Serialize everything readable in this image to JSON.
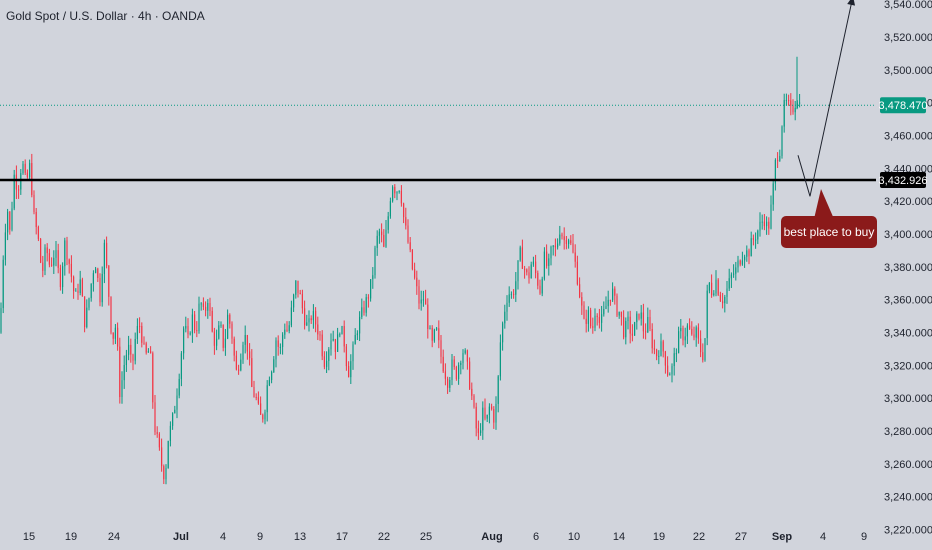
{
  "chart_data": {
    "type": "candlestick",
    "title": "Gold Spot / U.S. Dollar · 4h · OANDA",
    "ylim": [
      3210,
      3545
    ],
    "y_ticks": [
      3220,
      3240,
      3260,
      3280,
      3300,
      3320,
      3340,
      3360,
      3380,
      3400,
      3420,
      3440,
      3460,
      3480,
      3500,
      3520,
      3540
    ],
    "y_tick_labels": [
      "3,220.000",
      "3,240.000",
      "3,260.000",
      "3,280.000",
      "3,300.000",
      "3,320.000",
      "3,340.000",
      "3,360.000",
      "3,380.000",
      "3,400.000",
      "3,420.000",
      "3,440.000",
      "3,460.000",
      "3,480.000",
      "3,500.000",
      "3,520.000",
      "3,540.000"
    ],
    "x_ticks": [
      "15",
      "19",
      "24",
      "Jul",
      "4",
      "9",
      "13",
      "17",
      "22",
      "25",
      "Aug",
      "6",
      "10",
      "14",
      "19",
      "22",
      "27",
      "Sep",
      "4",
      "9"
    ],
    "path": [
      [
        0,
        3340
      ],
      [
        3,
        3385
      ],
      [
        7,
        3418
      ],
      [
        10,
        3400
      ],
      [
        14,
        3436
      ],
      [
        18,
        3428
      ],
      [
        22,
        3445
      ],
      [
        26,
        3430
      ],
      [
        30,
        3442
      ],
      [
        34,
        3410
      ],
      [
        38,
        3398
      ],
      [
        42,
        3375
      ],
      [
        46,
        3392
      ],
      [
        50,
        3380
      ],
      [
        55,
        3390
      ],
      [
        60,
        3370
      ],
      [
        65,
        3395
      ],
      [
        70,
        3380
      ],
      [
        75,
        3360
      ],
      [
        80,
        3372
      ],
      [
        85,
        3345
      ],
      [
        90,
        3365
      ],
      [
        95,
        3385
      ],
      [
        100,
        3362
      ],
      [
        104,
        3395
      ],
      [
        108,
        3370
      ],
      [
        112,
        3335
      ],
      [
        116,
        3345
      ],
      [
        120,
        3302
      ],
      [
        124,
        3320
      ],
      [
        128,
        3332
      ],
      [
        132,
        3318
      ],
      [
        136,
        3340
      ],
      [
        140,
        3345
      ],
      [
        145,
        3325
      ],
      [
        150,
        3330
      ],
      [
        154,
        3285
      ],
      [
        158,
        3272
      ],
      [
        162,
        3258
      ],
      [
        165,
        3252
      ],
      [
        168,
        3275
      ],
      [
        172,
        3285
      ],
      [
        176,
        3300
      ],
      [
        180,
        3320
      ],
      [
        184,
        3345
      ],
      [
        188,
        3335
      ],
      [
        192,
        3350
      ],
      [
        196,
        3340
      ],
      [
        200,
        3360
      ],
      [
        204,
        3350
      ],
      [
        208,
        3362
      ],
      [
        212,
        3340
      ],
      [
        216,
        3332
      ],
      [
        220,
        3345
      ],
      [
        224,
        3330
      ],
      [
        228,
        3352
      ],
      [
        232,
        3338
      ],
      [
        236,
        3315
      ],
      [
        240,
        3325
      ],
      [
        244,
        3340
      ],
      [
        248,
        3330
      ],
      [
        252,
        3305
      ],
      [
        256,
        3300
      ],
      [
        260,
        3288
      ],
      [
        264,
        3290
      ],
      [
        268,
        3312
      ],
      [
        272,
        3320
      ],
      [
        276,
        3336
      ],
      [
        280,
        3328
      ],
      [
        284,
        3345
      ],
      [
        288,
        3340
      ],
      [
        292,
        3355
      ],
      [
        296,
        3370
      ],
      [
        300,
        3362
      ],
      [
        304,
        3350
      ],
      [
        308,
        3342
      ],
      [
        312,
        3352
      ],
      [
        316,
        3345
      ],
      [
        320,
        3338
      ],
      [
        324,
        3322
      ],
      [
        328,
        3330
      ],
      [
        332,
        3340
      ],
      [
        336,
        3330
      ],
      [
        340,
        3344
      ],
      [
        344,
        3335
      ],
      [
        348,
        3315
      ],
      [
        352,
        3325
      ],
      [
        356,
        3340
      ],
      [
        360,
        3348
      ],
      [
        364,
        3355
      ],
      [
        368,
        3362
      ],
      [
        372,
        3372
      ],
      [
        376,
        3395
      ],
      [
        380,
        3402
      ],
      [
        384,
        3390
      ],
      [
        388,
        3410
      ],
      [
        392,
        3432
      ],
      [
        396,
        3426
      ],
      [
        400,
        3430
      ],
      [
        404,
        3408
      ],
      [
        408,
        3395
      ],
      [
        412,
        3380
      ],
      [
        416,
        3368
      ],
      [
        420,
        3356
      ],
      [
        424,
        3362
      ],
      [
        428,
        3345
      ],
      [
        432,
        3332
      ],
      [
        436,
        3342
      ],
      [
        440,
        3328
      ],
      [
        444,
        3318
      ],
      [
        448,
        3310
      ],
      [
        452,
        3320
      ],
      [
        456,
        3314
      ],
      [
        460,
        3325
      ],
      [
        464,
        3330
      ],
      [
        468,
        3316
      ],
      [
        472,
        3300
      ],
      [
        476,
        3282
      ],
      [
        479,
        3275
      ],
      [
        482,
        3292
      ],
      [
        486,
        3284
      ],
      [
        490,
        3296
      ],
      [
        494,
        3288
      ],
      [
        497,
        3298
      ],
      [
        500,
        3332
      ],
      [
        504,
        3352
      ],
      [
        508,
        3365
      ],
      [
        512,
        3362
      ],
      [
        516,
        3372
      ],
      [
        520,
        3388
      ],
      [
        524,
        3380
      ],
      [
        528,
        3372
      ],
      [
        532,
        3384
      ],
      [
        536,
        3375
      ],
      [
        540,
        3366
      ],
      [
        544,
        3386
      ],
      [
        548,
        3378
      ],
      [
        552,
        3392
      ],
      [
        556,
        3390
      ],
      [
        560,
        3404
      ],
      [
        564,
        3396
      ],
      [
        568,
        3400
      ],
      [
        572,
        3390
      ],
      [
        576,
        3380
      ],
      [
        580,
        3362
      ],
      [
        584,
        3345
      ],
      [
        588,
        3352
      ],
      [
        592,
        3340
      ],
      [
        596,
        3358
      ],
      [
        600,
        3344
      ],
      [
        604,
        3352
      ],
      [
        608,
        3360
      ],
      [
        612,
        3366
      ],
      [
        616,
        3355
      ],
      [
        620,
        3352
      ],
      [
        624,
        3340
      ],
      [
        628,
        3346
      ],
      [
        632,
        3338
      ],
      [
        636,
        3346
      ],
      [
        640,
        3354
      ],
      [
        644,
        3340
      ],
      [
        648,
        3346
      ],
      [
        652,
        3334
      ],
      [
        656,
        3326
      ],
      [
        660,
        3332
      ],
      [
        664,
        3328
      ],
      [
        668,
        3315
      ],
      [
        672,
        3318
      ],
      [
        676,
        3330
      ],
      [
        680,
        3340
      ],
      [
        684,
        3338
      ],
      [
        688,
        3344
      ],
      [
        692,
        3336
      ],
      [
        696,
        3340
      ],
      [
        700,
        3330
      ],
      [
        704,
        3325
      ],
      [
        708,
        3372
      ],
      [
        712,
        3365
      ],
      [
        716,
        3372
      ],
      [
        720,
        3362
      ],
      [
        724,
        3360
      ],
      [
        728,
        3368
      ],
      [
        732,
        3375
      ],
      [
        736,
        3378
      ],
      [
        740,
        3385
      ],
      [
        744,
        3390
      ],
      [
        748,
        3388
      ],
      [
        752,
        3395
      ],
      [
        756,
        3400
      ],
      [
        760,
        3405
      ],
      [
        764,
        3410
      ],
      [
        768,
        3402
      ],
      [
        772,
        3420
      ],
      [
        776,
        3447
      ],
      [
        780,
        3452
      ],
      [
        783,
        3476
      ],
      [
        787,
        3480
      ],
      [
        791,
        3474
      ],
      [
        795,
        3480
      ],
      [
        797,
        3484
      ],
      [
        799,
        3480
      ],
      [
        801,
        3477
      ]
    ],
    "current_price_label": "3,478.470",
    "current_price": 3478.47,
    "level_label": "3,432.926",
    "level": 3432.926,
    "arrow_points": [
      [
        798,
        3448
      ],
      [
        810,
        3423
      ],
      [
        853,
        3545
      ]
    ],
    "annotation": "best place to buy",
    "colors": {
      "up": "#089981",
      "down": "#f23645",
      "background": "#d1d4dc",
      "level": "#000000",
      "price_tag": "#089981",
      "note": "#8b1a1a"
    }
  }
}
